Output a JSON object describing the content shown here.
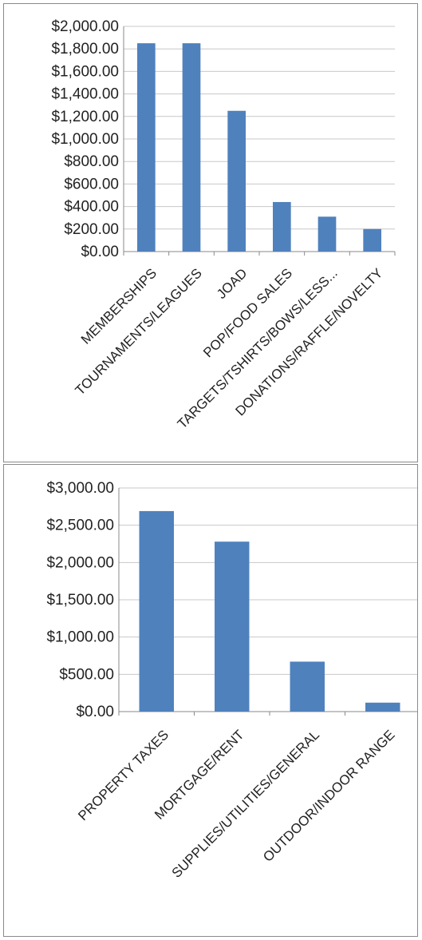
{
  "chart_data": [
    {
      "type": "bar",
      "categories": [
        "MEMBERSHIPS",
        "TOURNAMENTS/LEAGUES",
        "JOAD",
        "POP/FOOD SALES",
        "TARGETS/TSHIRTS/BOWS/LESS...",
        "DONATIONS/RAFFLE/NOVELTY"
      ],
      "values": [
        1850,
        1850,
        1250,
        440,
        310,
        200
      ],
      "ylim": [
        0,
        2000
      ],
      "yticks": [
        0,
        200,
        400,
        600,
        800,
        1000,
        1200,
        1400,
        1600,
        1800,
        2000
      ],
      "ytick_labels": [
        "$0.00",
        "$200.00",
        "$400.00",
        "$600.00",
        "$800.00",
        "$1,000.00",
        "$1,200.00",
        "$1,400.00",
        "$1,600.00",
        "$1,800.00",
        "$2,000.00"
      ],
      "grid": true,
      "bar_color": "#4f81bd"
    },
    {
      "type": "bar",
      "categories": [
        "PROPERTY TAXES",
        "MORTGAGE/RENT",
        "SUPPLIES/UTILITIES/GENERAL",
        "OUTDOOR/INDOOR RANGE"
      ],
      "values": [
        2690,
        2280,
        670,
        120
      ],
      "ylim": [
        0,
        3000
      ],
      "yticks": [
        0,
        500,
        1000,
        1500,
        2000,
        2500,
        3000
      ],
      "ytick_labels": [
        "$0.00",
        "$500.00",
        "$1,000.00",
        "$1,500.00",
        "$2,000.00",
        "$2,500.00",
        "$3,000.00"
      ],
      "grid": true,
      "bar_color": "#4f81bd"
    }
  ]
}
